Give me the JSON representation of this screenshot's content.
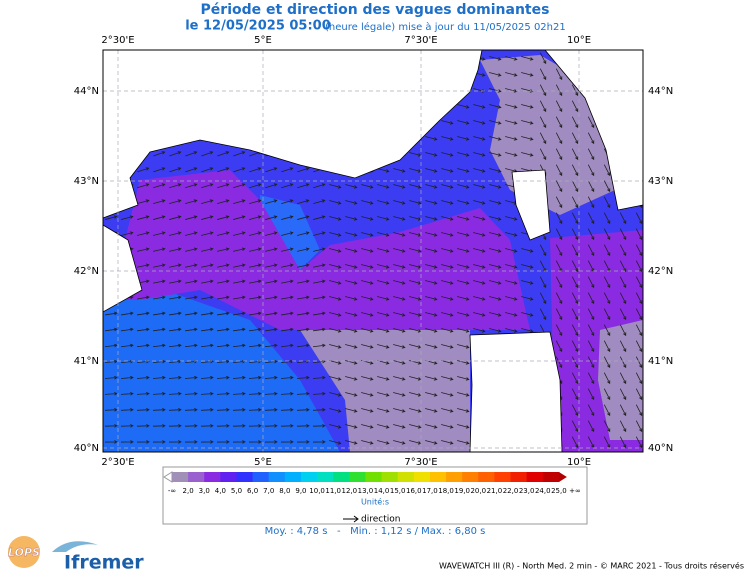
{
  "header": {
    "title": "Période et direction des vagues dominantes",
    "date": "le 12/05/2025 05:00",
    "update": "(heure légale) mise à jour du 11/05/2025 02h21"
  },
  "map": {
    "lon_labels": [
      "2°30'E",
      "5°E",
      "7°30'E",
      "10°E"
    ],
    "lat_labels": [
      "44°N",
      "43°N",
      "42°N",
      "41°N",
      "40°N"
    ]
  },
  "legend": {
    "labels": [
      "-∞",
      "2,0",
      "3,0",
      "4,0",
      "5,0",
      "6,0",
      "7,0",
      "8,0",
      "9,0",
      "10,0",
      "11,0",
      "12,0",
      "13,0",
      "14,0",
      "15,0",
      "16,0",
      "17,0",
      "18,0",
      "19,0",
      "20,0",
      "21,0",
      "22,0",
      "23,0",
      "24,0",
      "25,0",
      "+∞"
    ],
    "unit": "Unité:s",
    "direction": "direction"
  },
  "stats": "Moy. : 4,78 s   -   Min. : 1,12 s / Max. : 6,80 s",
  "footer": "WAVEWATCH III (R) - North Med. 2 min - © MARC 2021 - Tous droits réservés",
  "logos": {
    "lops": "LOPS",
    "ifremer": "Ifremer"
  }
}
